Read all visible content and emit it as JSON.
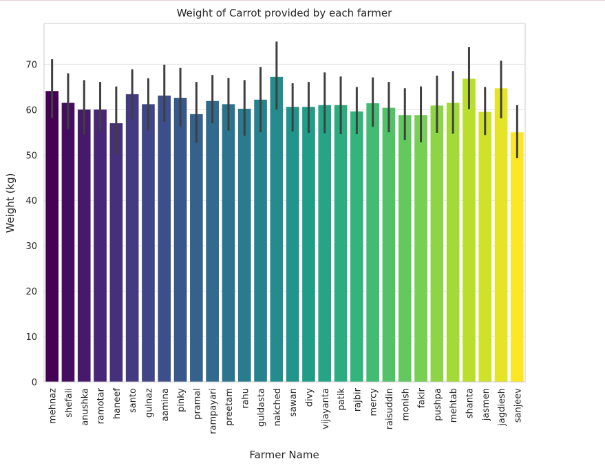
{
  "chart_data": {
    "type": "bar",
    "title": "Weight of Carrot provided by each farmer",
    "xlabel": "Farmer Name",
    "ylabel": "Weight (kg)",
    "ylim": [
      0,
      79
    ],
    "yticks": [
      0,
      10,
      20,
      30,
      40,
      50,
      60,
      70
    ],
    "grid": true,
    "palette": "viridis",
    "categories": [
      "mehnaz",
      "shefali",
      "anushka",
      "ramotar",
      "haneef",
      "santo",
      "gulnaz",
      "aamina",
      "pinky",
      "pramal",
      "rampayari",
      "preetam",
      "rahu",
      "guldasta",
      "nakched",
      "sawan",
      "divy",
      "vijayanta",
      "patik",
      "rajbir",
      "mercy",
      "raisuddin",
      "monish",
      "fakir",
      "pushpa",
      "mehtab",
      "shanta",
      "jasmen",
      "jagdiesh",
      "sanjeev"
    ],
    "values": [
      64.1,
      61.5,
      60.0,
      60.0,
      57.0,
      63.4,
      61.2,
      63.1,
      62.6,
      59.0,
      61.9,
      61.2,
      60.2,
      62.2,
      67.2,
      60.6,
      60.6,
      61.0,
      61.0,
      59.6,
      61.4,
      60.4,
      58.8,
      58.8,
      60.9,
      61.5,
      66.8,
      59.5,
      64.7,
      55.0
    ],
    "err_low": [
      58.1,
      55.7,
      54.5,
      55.0,
      50.0,
      57.9,
      55.4,
      57.3,
      56.3,
      52.7,
      57.0,
      55.4,
      54.2,
      55.0,
      60.0,
      55.2,
      54.9,
      54.8,
      54.6,
      54.6,
      56.2,
      55.0,
      53.3,
      52.8,
      54.9,
      54.7,
      60.1,
      54.4,
      58.1,
      49.3
    ],
    "err_high": [
      71.1,
      68.0,
      66.5,
      66.1,
      65.1,
      68.9,
      66.9,
      69.9,
      69.2,
      66.1,
      67.6,
      67.0,
      66.5,
      69.4,
      75.0,
      65.8,
      66.1,
      68.2,
      67.3,
      65.0,
      67.1,
      66.1,
      64.7,
      65.1,
      67.5,
      68.5,
      73.8,
      65.0,
      70.8,
      61.0
    ]
  }
}
